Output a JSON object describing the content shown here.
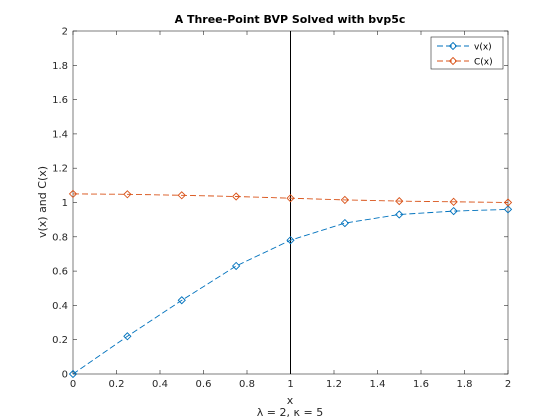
{
  "chart_data": {
    "type": "line",
    "title": "A Three-Point BVP Solved with bvp5c",
    "xlabel": "x",
    "ylabel": "v(x) and C(x)",
    "subtitle": "λ = 2, κ = 5",
    "xlim": [
      0,
      2
    ],
    "ylim": [
      0,
      2
    ],
    "x_ticks": [
      "0",
      "0.2",
      "0.4",
      "0.6",
      "0.8",
      "1",
      "1.2",
      "1.4",
      "1.6",
      "1.8",
      "2"
    ],
    "y_ticks": [
      "0",
      "0.2",
      "0.4",
      "0.6",
      "0.8",
      "1",
      "1.2",
      "1.4",
      "1.6",
      "1.8",
      "2"
    ],
    "grid": false,
    "legend_position": "top-right",
    "interface_line_x": 1,
    "x": [
      0,
      0.25,
      0.5,
      0.75,
      1.0,
      1.25,
      1.5,
      1.75,
      2.0
    ],
    "series": [
      {
        "name": "v(x)",
        "color": "#0072BD",
        "line_style": "dashed",
        "marker": "diamond",
        "values": [
          0.0,
          0.22,
          0.43,
          0.63,
          0.78,
          0.88,
          0.93,
          0.95,
          0.96
        ]
      },
      {
        "name": "C(x)",
        "color": "#D95319",
        "line_style": "dashed",
        "marker": "diamond",
        "values": [
          1.05,
          1.048,
          1.042,
          1.035,
          1.025,
          1.015,
          1.008,
          1.004,
          1.0
        ]
      }
    ]
  }
}
